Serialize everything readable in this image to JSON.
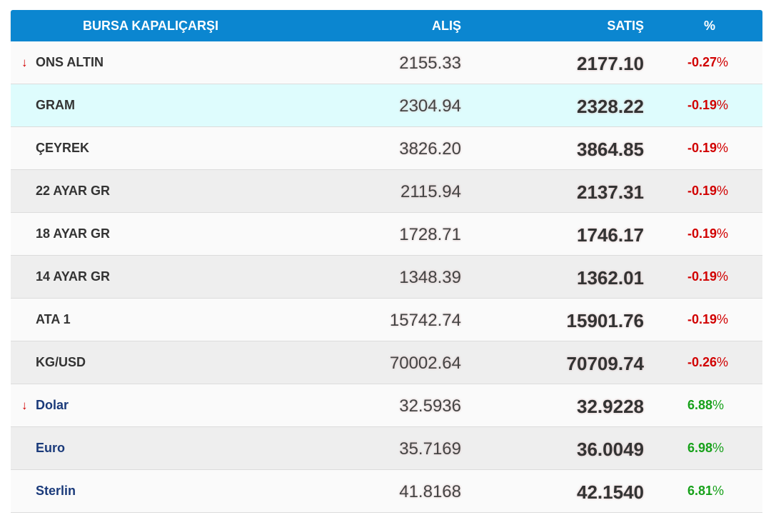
{
  "header": {
    "name": "BURSA KAPALIÇARŞI",
    "alis": "ALIŞ",
    "satis": "SATIŞ",
    "pct": "%"
  },
  "rows": [
    {
      "name": "ONS ALTIN",
      "alis": "2155.33",
      "satis": "2177.10",
      "pct": "-0.27",
      "arrow": "↓",
      "kind": "gold"
    },
    {
      "name": "GRAM",
      "alis": "2304.94",
      "satis": "2328.22",
      "pct": "-0.19",
      "kind": "gold"
    },
    {
      "name": "ÇEYREK",
      "alis": "3826.20",
      "satis": "3864.85",
      "pct": "-0.19",
      "kind": "gold"
    },
    {
      "name": "22 AYAR GR",
      "alis": "2115.94",
      "satis": "2137.31",
      "pct": "-0.19",
      "kind": "gold"
    },
    {
      "name": "18 AYAR GR",
      "alis": "1728.71",
      "satis": "1746.17",
      "pct": "-0.19",
      "kind": "gold"
    },
    {
      "name": "14 AYAR GR",
      "alis": "1348.39",
      "satis": "1362.01",
      "pct": "-0.19",
      "kind": "gold"
    },
    {
      "name": "ATA 1",
      "alis": "15742.74",
      "satis": "15901.76",
      "pct": "-0.19",
      "kind": "gold"
    },
    {
      "name": "KG/USD",
      "alis": "70002.64",
      "satis": "70709.74",
      "pct": "-0.26",
      "kind": "gold"
    },
    {
      "name": "Dolar",
      "alis": "32.5936",
      "satis": "32.9228",
      "pct": "6.88",
      "arrow": "↓",
      "kind": "fx"
    },
    {
      "name": "Euro",
      "alis": "35.7169",
      "satis": "36.0049",
      "pct": "6.98",
      "kind": "fx"
    },
    {
      "name": "Sterlin",
      "alis": "41.8168",
      "satis": "42.1540",
      "pct": "6.81",
      "kind": "fx"
    }
  ],
  "colors": {
    "header_bg": "#0b86d0",
    "negative": "#d10000",
    "positive": "#17a11a",
    "highlight_row": "#defcfd"
  }
}
